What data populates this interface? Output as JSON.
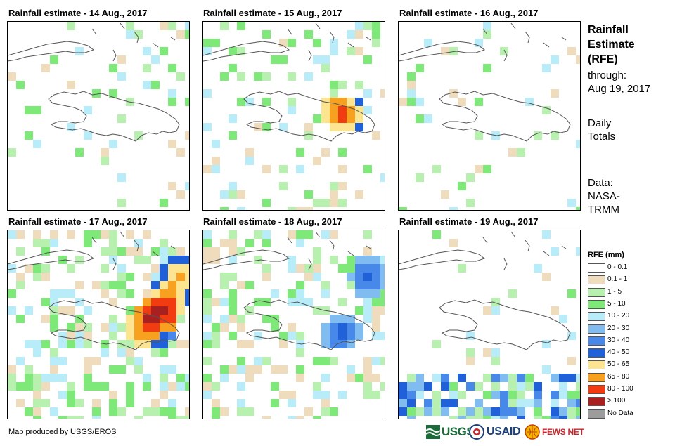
{
  "panels": [
    {
      "title": "Rainfall estimate - 14 Aug., 2017",
      "pattern": "light"
    },
    {
      "title": "Rainfall estimate - 15 Aug., 2017",
      "pattern": "scattered"
    },
    {
      "title": "Rainfall estimate - 16 Aug., 2017",
      "pattern": "light-north"
    },
    {
      "title": "Rainfall estimate - 17 Aug., 2017",
      "pattern": "heavy"
    },
    {
      "title": "Rainfall estimate - 18 Aug., 2017",
      "pattern": "moderate"
    },
    {
      "title": "Rainfall estimate - 19 Aug., 2017",
      "pattern": "south"
    }
  ],
  "side": {
    "title_lines": [
      "Rainfall",
      "Estimate",
      "(RFE)"
    ],
    "through_lines": [
      "through:",
      "Aug 19, 2017"
    ],
    "totals_lines": [
      "Daily",
      "Totals"
    ],
    "data_lines": [
      "Data:",
      "NASA-",
      "TRMM"
    ]
  },
  "legend": {
    "title": "RFE (mm)",
    "items": [
      {
        "label": "0 - 0.1",
        "color": "#ffffff"
      },
      {
        "label": "0.1 - 1",
        "color": "#efdcbc"
      },
      {
        "label": "1 - 5",
        "color": "#b8f0b0"
      },
      {
        "label": "5 - 10",
        "color": "#7ee878"
      },
      {
        "label": "10 - 20",
        "color": "#b8ecf8"
      },
      {
        "label": "20 - 30",
        "color": "#80bcf0"
      },
      {
        "label": "30 - 40",
        "color": "#4888e8"
      },
      {
        "label": "40 - 50",
        "color": "#2060d8"
      },
      {
        "label": "50 - 65",
        "color": "#fce490"
      },
      {
        "label": "65 - 80",
        "color": "#f8a020"
      },
      {
        "label": "80 - 100",
        "color": "#f03c10"
      },
      {
        "label": "> 100",
        "color": "#a82020"
      },
      {
        "label": "No Data",
        "color": "#9c9c9c"
      }
    ]
  },
  "credit": "Map produced by USGS/EROS",
  "logos": {
    "usgs": "USGS",
    "usaid": "USAID",
    "fewsnet": "FEWS NET"
  }
}
